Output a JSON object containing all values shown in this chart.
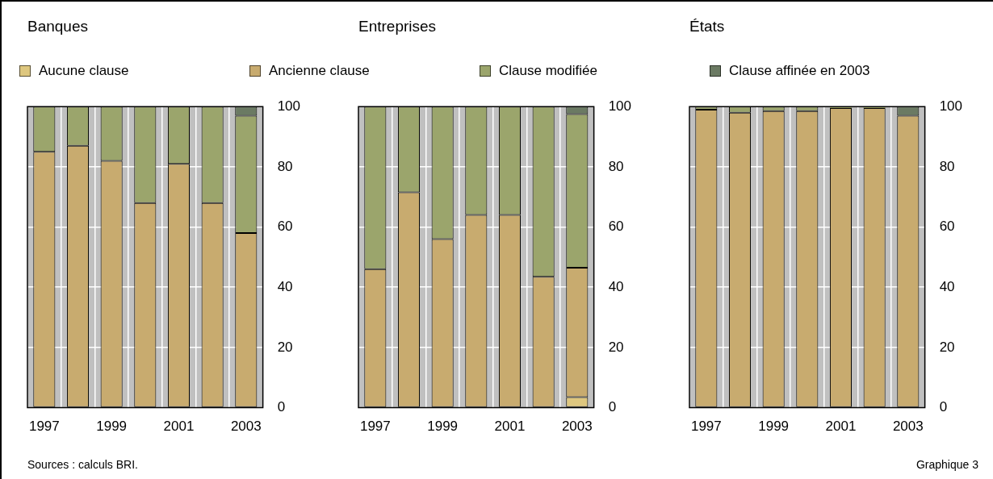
{
  "chart_data": [
    {
      "type": "bar",
      "title": "Banques",
      "stacked": true,
      "legend": "top",
      "grid": true,
      "categories": [
        "1997",
        null,
        "1999",
        null,
        "2001",
        null,
        "2003"
      ],
      "ylim": [
        0,
        100
      ],
      "yticks": [
        0,
        20,
        40,
        60,
        80,
        100
      ],
      "series": [
        {
          "name": "Aucune clause",
          "color": "#dec77f",
          "values": [
            0,
            0,
            0,
            0,
            0,
            0,
            0
          ]
        },
        {
          "name": "Ancienne clause",
          "color": "#c8ab6f",
          "values": [
            85,
            87,
            82,
            68,
            81,
            68,
            58
          ]
        },
        {
          "name": "Clause modifiée",
          "color": "#9ba56c",
          "values": [
            15,
            13,
            18,
            32,
            19,
            32,
            39
          ]
        },
        {
          "name": "Clause affinée en 2003",
          "color": "#6b7a63",
          "values": [
            0,
            0,
            0,
            0,
            0,
            0,
            3
          ]
        }
      ],
      "annotations": [
        "Sources : calculs BRI.",
        "Graphique 3"
      ]
    },
    {
      "type": "bar",
      "title": "Entreprises",
      "stacked": true,
      "grid": true,
      "categories": [
        "1997",
        null,
        "1999",
        null,
        "2001",
        null,
        "2003"
      ],
      "ylim": [
        0,
        100
      ],
      "yticks": [
        0,
        20,
        40,
        60,
        80,
        100
      ],
      "series": [
        {
          "color": "#dec77f",
          "values": [
            0,
            0,
            0,
            0,
            0,
            0,
            3.5
          ]
        },
        {
          "color": "#c8ab6f",
          "values": [
            46,
            71.5,
            56,
            64,
            64,
            43.5,
            43
          ]
        },
        {
          "color": "#9ba56c",
          "values": [
            54,
            28.5,
            44,
            36,
            36,
            56.5,
            51
          ]
        },
        {
          "color": "#6b7a63",
          "values": [
            0,
            0,
            0,
            0,
            0,
            0,
            2.5
          ]
        }
      ]
    },
    {
      "type": "bar",
      "title": "États",
      "stacked": true,
      "grid": true,
      "categories": [
        "1997",
        null,
        "1999",
        null,
        "2001",
        null,
        "2003"
      ],
      "ylim": [
        0,
        100
      ],
      "yticks": [
        0,
        20,
        40,
        60,
        80,
        100
      ],
      "series": [
        {
          "color": "#dec77f",
          "values": [
            0,
            0,
            0,
            0,
            0,
            0,
            0
          ]
        },
        {
          "color": "#c8ab6f",
          "values": [
            99,
            98,
            98.5,
            98.5,
            99.5,
            99.5,
            97
          ]
        },
        {
          "color": "#9ba56c",
          "values": [
            1,
            2,
            1.5,
            1.5,
            0.5,
            0.5,
            0
          ]
        },
        {
          "color": "#6b7a63",
          "values": [
            0,
            0,
            0,
            0,
            0,
            0,
            3
          ]
        }
      ]
    }
  ]
}
